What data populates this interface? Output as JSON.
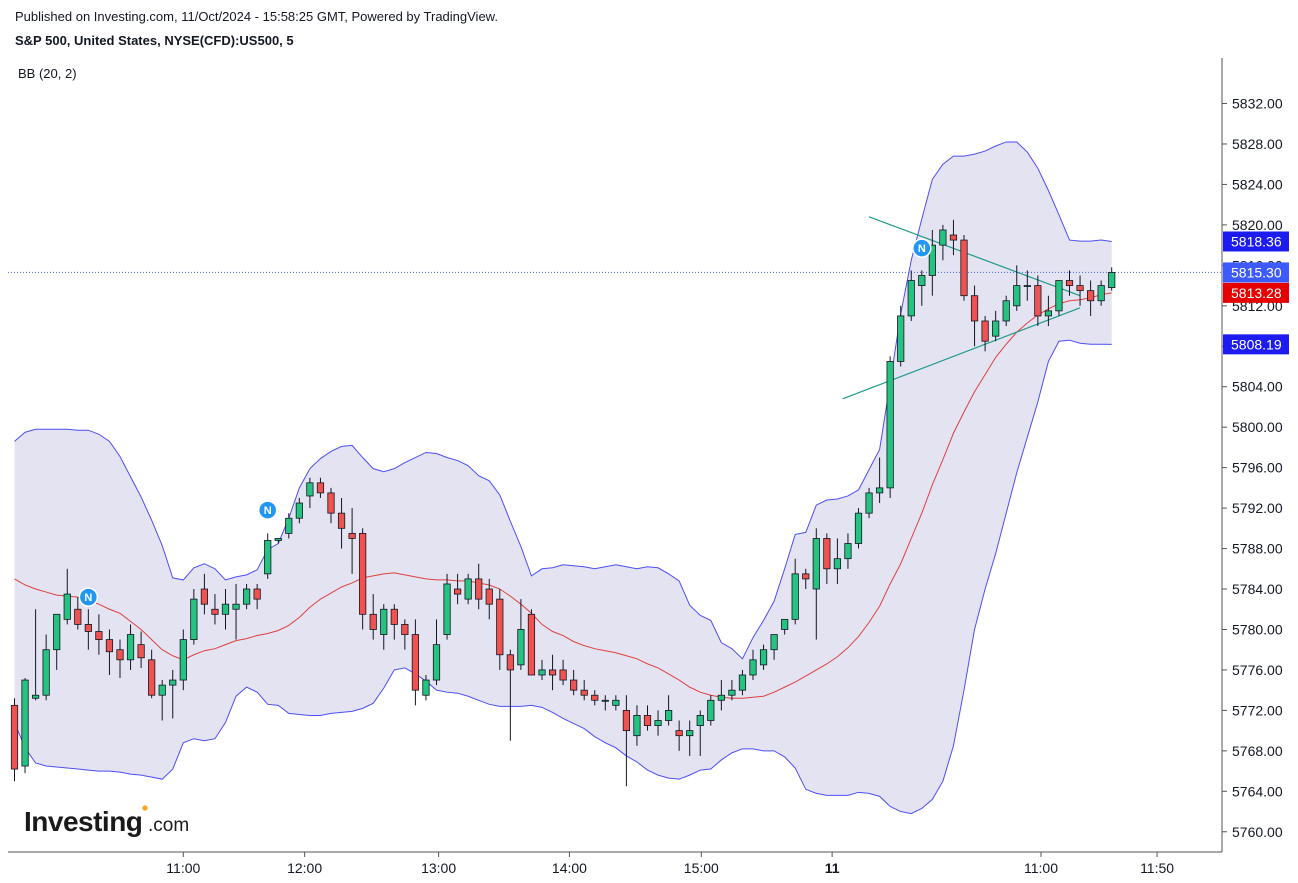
{
  "header": {
    "published": "Published on Investing.com, 11/Oct/2024 - 15:58:25 GMT, Powered by TradingView.",
    "instrument": "S&P 500, United States, NYSE(CFD):US500, 5",
    "indicator": "BB (20, 2)"
  },
  "branding": {
    "logo_main": "Investing",
    "logo_domain": ".com"
  },
  "colors": {
    "up": "#26c281",
    "down": "#ef5350",
    "wick": "#131722",
    "band_line": "#4e4ef5",
    "band_fill": "#e3e3f2",
    "middle_line": "#e04040",
    "trendline": "#1f9a8a",
    "last_price_line": "#4a5fe6",
    "tag_blue": "#1c1cf0",
    "tag_lastprice": "#3d5afe",
    "tag_red": "#e60000",
    "news_marker": "#2196f3"
  },
  "chart_data": {
    "type": "candlestick",
    "interval_minutes": 5,
    "x_tick_labels": [
      "11:00",
      "12:00",
      "13:00",
      "14:00",
      "15:00",
      "11",
      "11:00",
      "11:50"
    ],
    "y_tick_labels": [
      "5832.00",
      "5828.00",
      "5824.00",
      "5820.00",
      "5816.00",
      "5812.00",
      "5808.00",
      "5804.00",
      "5800.00",
      "5796.00",
      "5792.00",
      "5788.00",
      "5784.00",
      "5780.00",
      "5776.00",
      "5772.00",
      "5768.00",
      "5764.00",
      "5760.00"
    ],
    "ylim": [
      5758,
      5836.5
    ],
    "price_tags": [
      {
        "label": "5818.36",
        "value": 5818.36,
        "type": "upper_band"
      },
      {
        "label": "5815.30",
        "value": 5815.3,
        "type": "last_price"
      },
      {
        "label": "5813.28",
        "value": 5813.28,
        "type": "middle_band"
      },
      {
        "label": "5808.19",
        "value": 5808.19,
        "type": "lower_band"
      }
    ],
    "news_markers": [
      {
        "label": "N",
        "index": 7,
        "value": 5783.2
      },
      {
        "label": "N",
        "index": 24,
        "value": 5791.8
      },
      {
        "label": "N",
        "index": 86,
        "value": 5817.7
      }
    ],
    "trendlines": [
      {
        "x1": 81,
        "y1": 5820.8,
        "x2": 101,
        "y2": 5813.0
      },
      {
        "x1": 78.5,
        "y1": 5802.8,
        "x2": 101,
        "y2": 5811.8
      }
    ],
    "ohlc": [
      [
        5772.5,
        5773.2,
        5765.0,
        5766.2
      ],
      [
        5766.5,
        5775.2,
        5765.8,
        5775.0
      ],
      [
        5773.2,
        5782.0,
        5773.0,
        5773.5
      ],
      [
        5773.5,
        5779.5,
        5773.0,
        5778.0
      ],
      [
        5778.0,
        5781.0,
        5776.0,
        5781.5
      ],
      [
        5781.0,
        5786.0,
        5780.5,
        5783.5
      ],
      [
        5782.0,
        5783.2,
        5780.0,
        5780.5
      ],
      [
        5780.5,
        5782.0,
        5778.0,
        5779.8
      ],
      [
        5779.8,
        5781.5,
        5777.5,
        5779.0
      ],
      [
        5779.0,
        5780.0,
        5775.5,
        5777.8
      ],
      [
        5778.0,
        5779.0,
        5775.2,
        5777.0
      ],
      [
        5777.0,
        5780.5,
        5776.0,
        5779.5
      ],
      [
        5778.5,
        5779.8,
        5776.2,
        5777.2
      ],
      [
        5777.0,
        5778.0,
        5773.2,
        5773.5
      ],
      [
        5773.5,
        5775.0,
        5771.0,
        5774.5
      ],
      [
        5774.5,
        5776.0,
        5771.2,
        5775.0
      ],
      [
        5775.0,
        5780.0,
        5774.0,
        5779.0
      ],
      [
        5779.0,
        5784.0,
        5778.5,
        5783.0
      ],
      [
        5784.0,
        5785.5,
        5781.5,
        5782.5
      ],
      [
        5782.0,
        5783.5,
        5780.5,
        5781.5
      ],
      [
        5781.5,
        5784.0,
        5780.0,
        5782.5
      ],
      [
        5782.0,
        5784.5,
        5779.0,
        5782.5
      ],
      [
        5782.5,
        5784.5,
        5782.0,
        5784.0
      ],
      [
        5784.0,
        5784.5,
        5782.0,
        5783.0
      ],
      [
        5785.5,
        5789.5,
        5785.0,
        5788.8
      ],
      [
        5788.8,
        5789.0,
        5788.5,
        5789.0
      ],
      [
        5789.5,
        5791.5,
        5789.0,
        5791.0
      ],
      [
        5791.0,
        5793.0,
        5790.5,
        5792.5
      ],
      [
        5793.2,
        5795.0,
        5792.0,
        5794.5
      ],
      [
        5794.5,
        5795.0,
        5793.0,
        5793.5
      ],
      [
        5793.5,
        5794.0,
        5790.5,
        5791.5
      ],
      [
        5791.5,
        5793.0,
        5788.0,
        5790.0
      ],
      [
        5789.5,
        5792.0,
        5785.5,
        5789.0
      ],
      [
        5789.5,
        5790.0,
        5780.0,
        5781.5
      ],
      [
        5781.5,
        5783.5,
        5779.0,
        5780.0
      ],
      [
        5779.5,
        5782.5,
        5778.0,
        5782.0
      ],
      [
        5782.0,
        5782.5,
        5779.0,
        5780.5
      ],
      [
        5780.5,
        5781.0,
        5778.0,
        5779.5
      ],
      [
        5779.5,
        5781.0,
        5772.5,
        5774.0
      ],
      [
        5773.5,
        5775.5,
        5773.0,
        5775.0
      ],
      [
        5775.0,
        5781.0,
        5774.5,
        5778.5
      ],
      [
        5779.5,
        5785.5,
        5779.0,
        5784.5
      ],
      [
        5784.0,
        5785.5,
        5782.5,
        5783.5
      ],
      [
        5783.0,
        5785.5,
        5782.5,
        5785.0
      ],
      [
        5785.0,
        5786.5,
        5782.0,
        5783.0
      ],
      [
        5784.0,
        5785.0,
        5781.0,
        5782.5
      ],
      [
        5783.0,
        5784.0,
        5776.0,
        5777.5
      ],
      [
        5777.5,
        5778.0,
        5769.0,
        5776.0
      ],
      [
        5776.5,
        5783.0,
        5776.0,
        5780.0
      ],
      [
        5781.5,
        5782.0,
        5775.5,
        5775.5
      ],
      [
        5775.5,
        5777.0,
        5775.0,
        5776.0
      ],
      [
        5776.0,
        5777.5,
        5774.0,
        5775.5
      ],
      [
        5776.0,
        5777.0,
        5774.5,
        5775.0
      ],
      [
        5775.0,
        5776.0,
        5773.5,
        5774.0
      ],
      [
        5774.0,
        5775.0,
        5773.0,
        5773.5
      ],
      [
        5773.5,
        5774.0,
        5772.5,
        5773.0
      ],
      [
        5773.0,
        5773.5,
        5772.0,
        5773.0
      ],
      [
        5772.5,
        5773.5,
        5772.0,
        5773.0
      ],
      [
        5772.0,
        5773.5,
        5764.5,
        5770.0
      ],
      [
        5769.5,
        5772.5,
        5768.5,
        5771.5
      ],
      [
        5771.5,
        5772.5,
        5770.0,
        5770.5
      ],
      [
        5770.5,
        5772.0,
        5769.5,
        5771.0
      ],
      [
        5771.0,
        5773.5,
        5770.5,
        5772.0
      ],
      [
        5770.0,
        5771.0,
        5768.0,
        5769.5
      ],
      [
        5769.5,
        5771.0,
        5767.5,
        5770.0
      ],
      [
        5770.5,
        5772.0,
        5767.5,
        5771.5
      ],
      [
        5771.0,
        5773.5,
        5770.5,
        5773.0
      ],
      [
        5773.0,
        5775.0,
        5772.0,
        5773.5
      ],
      [
        5773.5,
        5775.0,
        5773.0,
        5774.0
      ],
      [
        5774.0,
        5776.0,
        5773.5,
        5775.5
      ],
      [
        5775.5,
        5778.0,
        5775.0,
        5777.0
      ],
      [
        5776.5,
        5778.5,
        5776.0,
        5778.0
      ],
      [
        5778.0,
        5779.0,
        5777.0,
        5779.5
      ],
      [
        5780.0,
        5781.0,
        5779.5,
        5781.0
      ],
      [
        5781.0,
        5787.0,
        5780.5,
        5785.5
      ],
      [
        5785.5,
        5786.0,
        5784.0,
        5785.0
      ],
      [
        5784.0,
        5790.0,
        5779.0,
        5789.0
      ],
      [
        5789.0,
        5789.5,
        5784.5,
        5786.0
      ],
      [
        5786.0,
        5789.0,
        5784.5,
        5787.0
      ],
      [
        5787.0,
        5789.5,
        5786.0,
        5788.5
      ],
      [
        5788.5,
        5792.0,
        5788.0,
        5791.5
      ],
      [
        5791.5,
        5794.0,
        5791.0,
        5793.5
      ],
      [
        5793.5,
        5797.0,
        5792.5,
        5794.0
      ],
      [
        5794.0,
        5807.0,
        5793.0,
        5806.5
      ],
      [
        5806.5,
        5812.0,
        5806.0,
        5811.0
      ],
      [
        5811.0,
        5815.5,
        5810.5,
        5814.5
      ],
      [
        5814.0,
        5815.5,
        5812.0,
        5815.0
      ],
      [
        5815.0,
        5819.5,
        5813.0,
        5818.0
      ],
      [
        5818.0,
        5820.0,
        5816.5,
        5819.5
      ],
      [
        5819.0,
        5820.5,
        5817.0,
        5818.5
      ],
      [
        5818.5,
        5819.0,
        5812.5,
        5813.0
      ],
      [
        5813.0,
        5814.0,
        5808.0,
        5810.5
      ],
      [
        5810.5,
        5811.0,
        5807.5,
        5808.5
      ],
      [
        5809.0,
        5811.5,
        5808.5,
        5810.5
      ],
      [
        5810.5,
        5813.0,
        5810.0,
        5812.5
      ],
      [
        5812.0,
        5816.0,
        5811.5,
        5814.0
      ],
      [
        5814.0,
        5815.5,
        5812.5,
        5814.0
      ],
      [
        5814.0,
        5815.0,
        5810.0,
        5811.0
      ],
      [
        5811.0,
        5813.0,
        5810.0,
        5811.5
      ],
      [
        5811.5,
        5814.5,
        5811.0,
        5814.5
      ],
      [
        5814.5,
        5815.5,
        5813.0,
        5814.0
      ],
      [
        5814.0,
        5815.0,
        5812.0,
        5813.5
      ],
      [
        5813.5,
        5814.5,
        5811.0,
        5812.5
      ],
      [
        5812.5,
        5814.5,
        5812.0,
        5814.0
      ],
      [
        5813.8,
        5815.8,
        5813.5,
        5815.3
      ]
    ],
    "upper_band": [
      5798.6,
      5799.5,
      5799.8,
      5799.8,
      5799.8,
      5799.8,
      5799.7,
      5799.7,
      5799.3,
      5798.6,
      5797.1,
      5795.1,
      5793.1,
      5790.8,
      5788.3,
      5785.1,
      5784.9,
      5786.1,
      5786.5,
      5786.0,
      5784.9,
      5785.2,
      5785.4,
      5785.9,
      5787.9,
      5788.5,
      5791.0,
      5794.0,
      5795.9,
      5796.9,
      5797.6,
      5798.1,
      5798.2,
      5797.0,
      5795.9,
      5795.6,
      5795.9,
      5796.5,
      5797.0,
      5797.5,
      5797.4,
      5797.0,
      5796.7,
      5796.2,
      5795.2,
      5794.7,
      5793.3,
      5790.7,
      5788.2,
      5785.3,
      5786.0,
      5786.1,
      5786.4,
      5786.3,
      5786.2,
      5786.0,
      5786.2,
      5786.4,
      5786.2,
      5786.0,
      5786.2,
      5786.1,
      5785.5,
      5784.8,
      5782.4,
      5781.4,
      5780.9,
      5778.7,
      5778.1,
      5777.1,
      5779.2,
      5780.9,
      5782.8,
      5786.0,
      5789.4,
      5789.6,
      5792.3,
      5792.8,
      5792.9,
      5793.2,
      5793.8,
      5795.8,
      5797.8,
      5804.4,
      5811.2,
      5816.5,
      5820.6,
      5824.5,
      5826.0,
      5826.8,
      5826.8,
      5827.0,
      5827.3,
      5827.8,
      5828.2,
      5828.2,
      5827.2,
      5825.6,
      5823.4,
      5821.0,
      5818.5,
      5818.4,
      5818.4,
      5818.5,
      5818.36
    ],
    "middle_band": [
      5785.0,
      5784.4,
      5784.0,
      5783.7,
      5783.4,
      5783.3,
      5783.2,
      5782.9,
      5782.5,
      5782.0,
      5781.6,
      5780.8,
      5780.0,
      5779.0,
      5778.0,
      5777.4,
      5777.0,
      5777.5,
      5777.9,
      5778.1,
      5778.5,
      5778.9,
      5779.1,
      5779.4,
      5779.6,
      5779.9,
      5780.4,
      5781.2,
      5782.2,
      5783.0,
      5783.6,
      5784.2,
      5784.6,
      5785.1,
      5785.3,
      5785.5,
      5785.6,
      5785.4,
      5785.2,
      5785.0,
      5784.9,
      5784.9,
      5784.8,
      5784.8,
      5784.6,
      5784.4,
      5784.0,
      5783.3,
      5782.5,
      5781.6,
      5780.5,
      5779.8,
      5779.4,
      5778.8,
      5778.4,
      5778.1,
      5777.9,
      5777.7,
      5777.4,
      5777.1,
      5776.6,
      5776.2,
      5775.6,
      5775.0,
      5774.3,
      5773.8,
      5773.5,
      5773.3,
      5773.2,
      5773.2,
      5773.3,
      5773.4,
      5773.8,
      5774.3,
      5774.8,
      5775.4,
      5776.0,
      5776.6,
      5777.3,
      5778.2,
      5779.3,
      5780.7,
      5782.3,
      5784.5,
      5786.5,
      5789.0,
      5791.5,
      5794.3,
      5796.8,
      5799.4,
      5801.5,
      5803.5,
      5805.2,
      5806.9,
      5808.2,
      5809.4,
      5810.3,
      5811.1,
      5811.7,
      5812.2,
      5812.5,
      5812.6,
      5812.8,
      5813.1,
      5813.28
    ],
    "lower_band": [
      5770.8,
      5768.3,
      5766.8,
      5766.5,
      5766.4,
      5766.3,
      5766.2,
      5766.1,
      5766.0,
      5766.0,
      5765.9,
      5765.7,
      5765.6,
      5765.4,
      5765.2,
      5766.2,
      5768.8,
      5769.2,
      5769.0,
      5769.2,
      5770.8,
      5773.4,
      5774.3,
      5773.8,
      5772.6,
      5772.5,
      5771.7,
      5771.6,
      5771.5,
      5771.5,
      5771.7,
      5771.8,
      5771.9,
      5772.2,
      5772.7,
      5774.2,
      5776.0,
      5776.2,
      5775.6,
      5774.9,
      5774.0,
      5773.8,
      5773.7,
      5773.4,
      5773.0,
      5772.6,
      5772.4,
      5772.4,
      5772.4,
      5772.5,
      5772.3,
      5771.8,
      5771.2,
      5770.7,
      5770.2,
      5769.4,
      5768.8,
      5768.3,
      5767.5,
      5766.9,
      5766.1,
      5765.6,
      5765.3,
      5765.2,
      5765.6,
      5766.1,
      5766.2,
      5767.1,
      5767.8,
      5768.2,
      5768.2,
      5768.0,
      5768.0,
      5767.4,
      5766.3,
      5764.2,
      5763.8,
      5763.6,
      5763.6,
      5763.6,
      5763.9,
      5763.8,
      5763.5,
      5762.5,
      5762.0,
      5761.8,
      5762.3,
      5763.2,
      5765.0,
      5768.5,
      5774.0,
      5780.0,
      5784.0,
      5787.5,
      5791.5,
      5795.5,
      5799.0,
      5802.5,
      5806.5,
      5808.5,
      5808.6,
      5808.3,
      5808.2,
      5808.2,
      5808.19
    ]
  }
}
